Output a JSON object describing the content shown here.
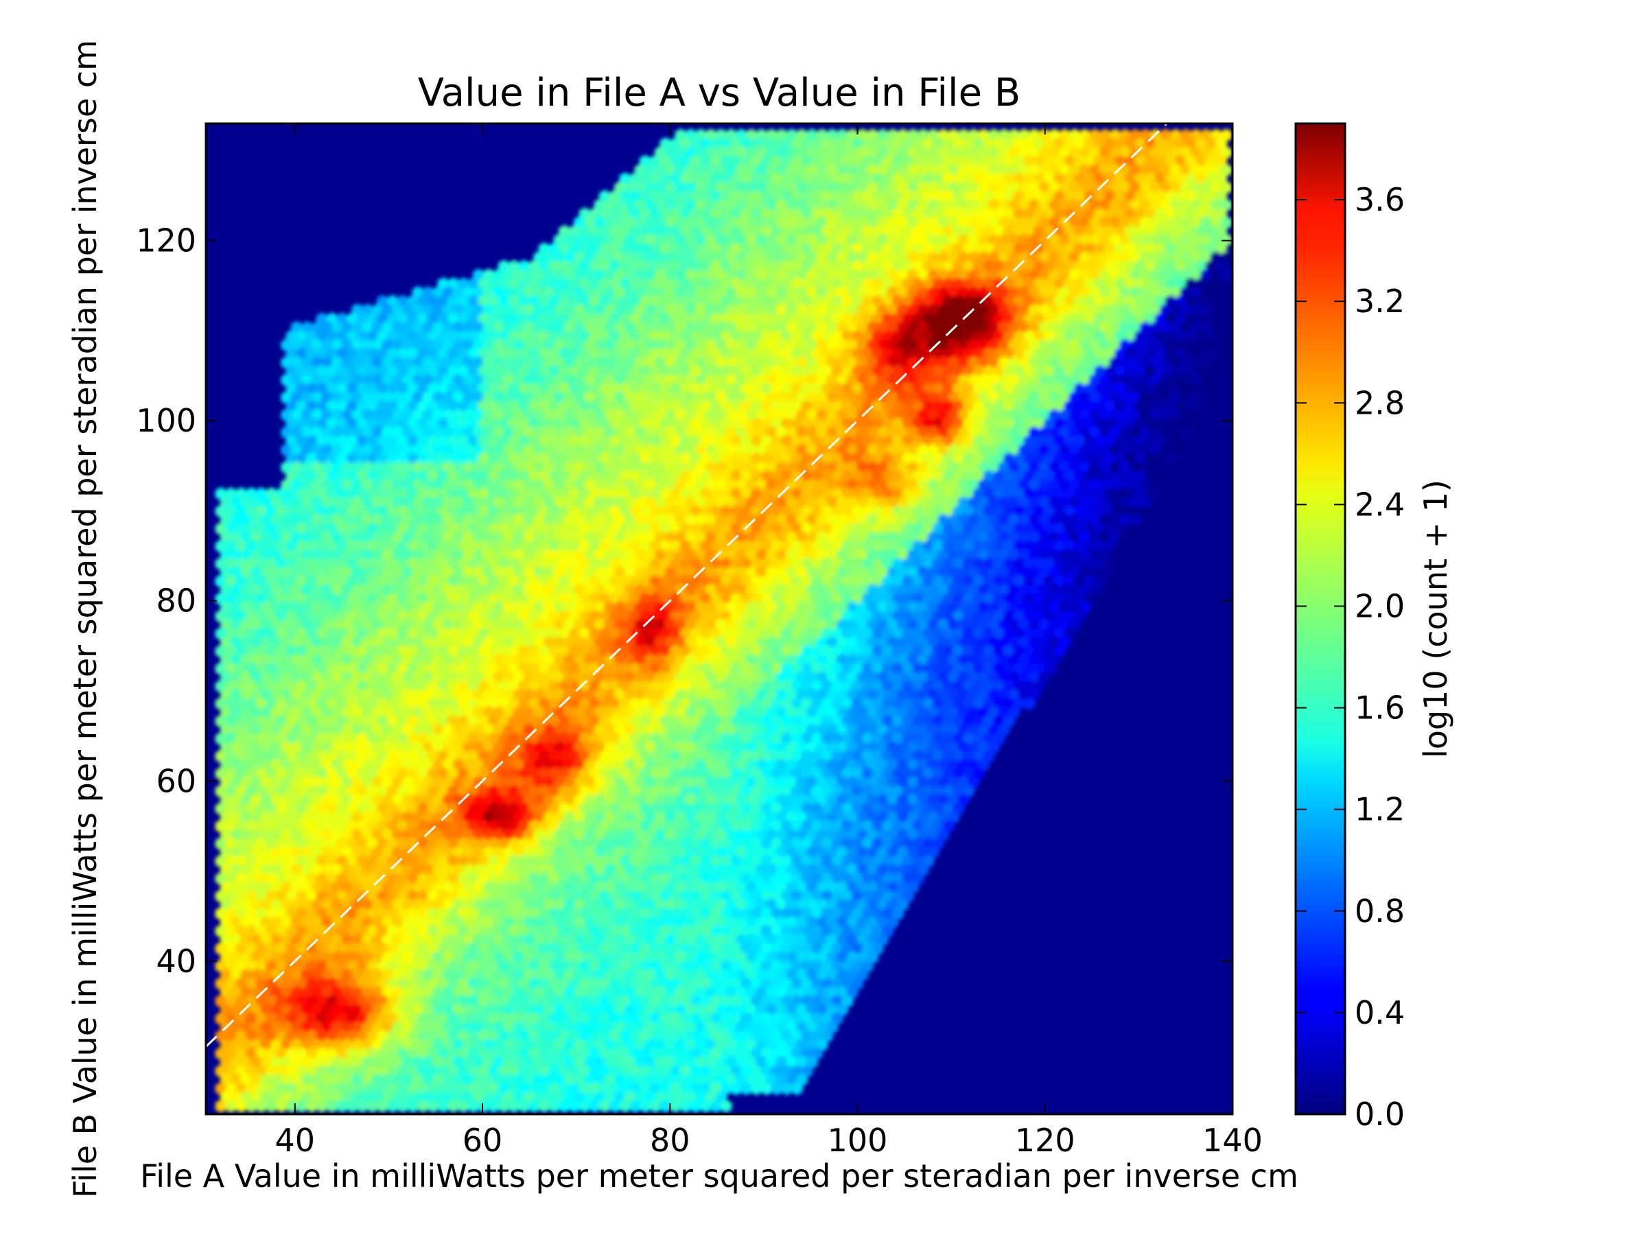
{
  "chart_data": {
    "type": "heatmap",
    "subtype": "hexbin",
    "title": "Value in File A vs Value in File B",
    "xlabel": "File A Value in milliWatts per meter squared per steradian per inverse cm",
    "ylabel": "File B Value in milliWatts per meter squared per steradian per inverse cm",
    "xlim": [
      30.5,
      140
    ],
    "ylim": [
      23,
      133
    ],
    "x_ticks": [
      40,
      60,
      80,
      100,
      120,
      140
    ],
    "y_ticks": [
      40,
      60,
      80,
      100,
      120
    ],
    "x_tick_labels": [
      "40",
      "60",
      "80",
      "100",
      "120",
      "140"
    ],
    "y_tick_labels": [
      "40",
      "60",
      "80",
      "100",
      "120"
    ],
    "colormap": "jet",
    "background_color": "#00008f",
    "grid": false,
    "colorbar": {
      "label": "log10 (count + 1)",
      "range": [
        0,
        3.9
      ],
      "ticks": [
        0.0,
        0.4,
        0.8,
        1.2,
        1.6,
        2.0,
        2.4,
        2.8,
        3.2,
        3.6
      ],
      "tick_labels": [
        "0.0",
        "0.4",
        "0.8",
        "1.2",
        "1.6",
        "2.0",
        "2.4",
        "2.8",
        "3.2",
        "3.6"
      ]
    },
    "reference_line": {
      "style": "dashed",
      "color": "#ffffff",
      "points": [
        [
          30.5,
          30.5
        ],
        [
          133,
          133
        ]
      ]
    },
    "density_peaks": [
      {
        "x": 45,
        "y": 34,
        "value": 3.4
      },
      {
        "x": 62,
        "y": 56,
        "value": 3.4
      },
      {
        "x": 70,
        "y": 65,
        "value": 3.0
      },
      {
        "x": 78,
        "y": 77,
        "value": 3.0
      },
      {
        "x": 111,
        "y": 111,
        "value": 3.9
      },
      {
        "x": 104,
        "y": 108,
        "value": 3.2
      },
      {
        "x": 109,
        "y": 100,
        "value": 3.3
      },
      {
        "x": 103,
        "y": 93,
        "value": 3.0
      }
    ]
  }
}
